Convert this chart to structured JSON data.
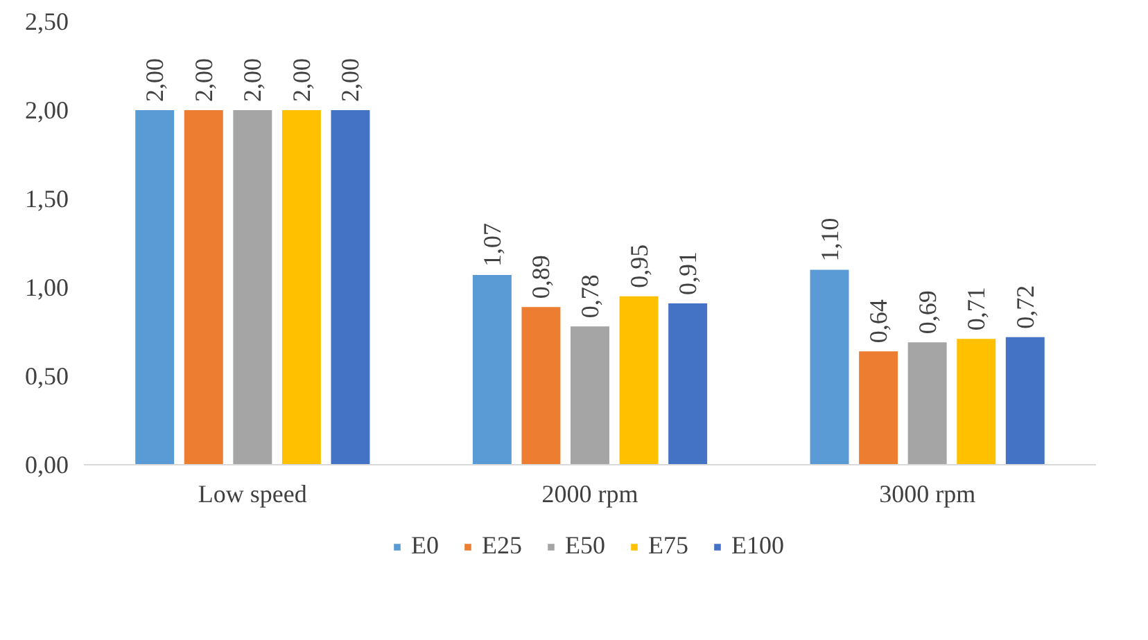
{
  "chart_data": {
    "type": "bar",
    "categories": [
      "Low speed",
      "2000 rpm",
      "3000 rpm"
    ],
    "series": [
      {
        "name": "E0",
        "color": "#5b9bd5",
        "values": [
          2.0,
          1.07,
          1.1
        ],
        "value_labels": [
          "2,00",
          "1,07",
          "1,10"
        ]
      },
      {
        "name": "E25",
        "color": "#ed7d31",
        "values": [
          2.0,
          0.89,
          0.64
        ],
        "value_labels": [
          "2,00",
          "0,89",
          "0,64"
        ]
      },
      {
        "name": "E50",
        "color": "#a5a5a5",
        "values": [
          2.0,
          0.78,
          0.69
        ],
        "value_labels": [
          "2,00",
          "0,78",
          "0,69"
        ]
      },
      {
        "name": "E75",
        "color": "#ffc000",
        "values": [
          2.0,
          0.95,
          0.71
        ],
        "value_labels": [
          "2,00",
          "0,95",
          "0,71"
        ]
      },
      {
        "name": "E100",
        "color": "#4472c4",
        "values": [
          2.0,
          0.91,
          0.72
        ],
        "value_labels": [
          "2,00",
          "0,91",
          "0,72"
        ]
      }
    ],
    "ylim": [
      0,
      2.5
    ],
    "yticks": [
      {
        "value": 0,
        "label": "0,00"
      },
      {
        "value": 0.5,
        "label": "0,50"
      },
      {
        "value": 1.0,
        "label": "1,00"
      },
      {
        "value": 1.5,
        "label": "1,50"
      },
      {
        "value": 2.0,
        "label": "2,00"
      },
      {
        "value": 2.5,
        "label": "2,50"
      }
    ],
    "grid": false,
    "legend": "bottom"
  }
}
